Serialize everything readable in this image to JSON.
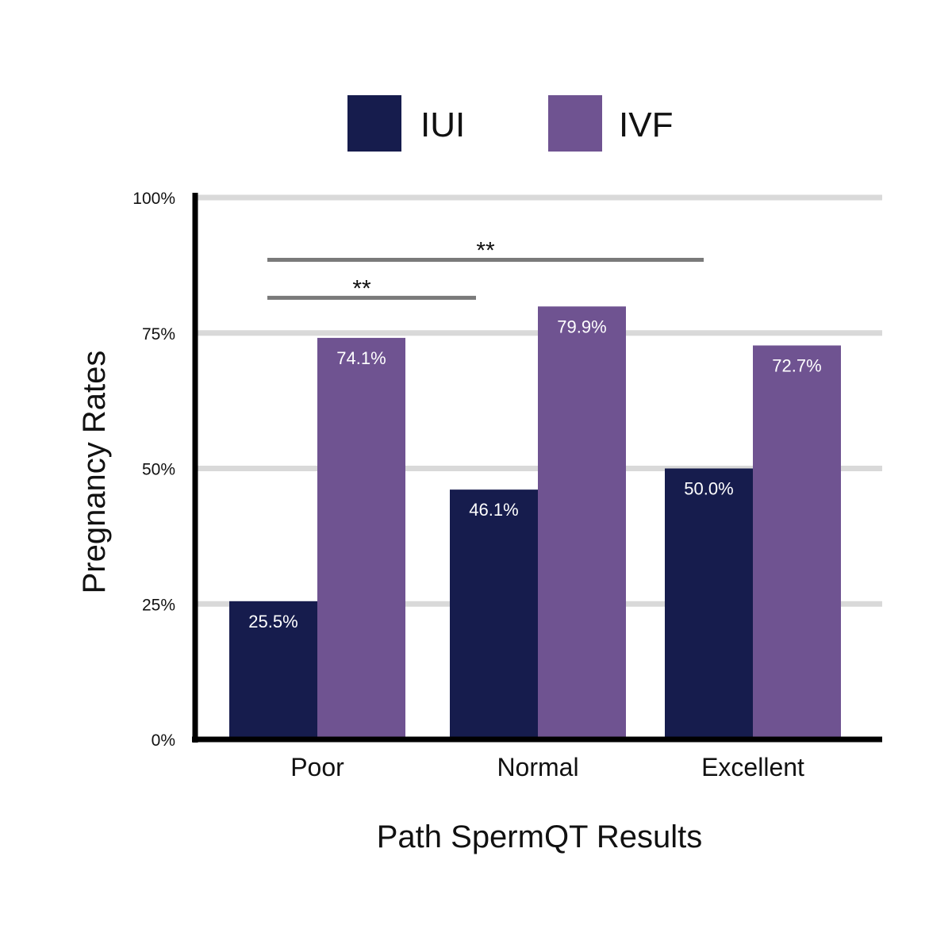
{
  "chart_data": {
    "type": "bar",
    "title": "",
    "xlabel": "Path SpermQT Results",
    "ylabel": "Pregnancy Rates",
    "categories": [
      "Poor",
      "Normal",
      "Excellent"
    ],
    "series": [
      {
        "name": "IUI",
        "color": "#161c4d",
        "values": [
          25.5,
          46.1,
          50.0
        ],
        "labels": [
          "25.5%",
          "46.1%",
          "50.0%"
        ]
      },
      {
        "name": "IVF",
        "color": "#6f5391",
        "values": [
          74.1,
          79.9,
          72.7
        ],
        "labels": [
          "74.1%",
          "79.9%",
          "72.7%"
        ]
      }
    ],
    "ylim": [
      0,
      100
    ],
    "yticks": [
      0,
      25,
      50,
      75,
      100
    ],
    "ytick_labels": [
      "0%",
      "25%",
      "50%",
      "75%",
      "100%"
    ],
    "grid": true,
    "legend_position": "top",
    "significance": [
      {
        "from": "Poor",
        "to": "Normal",
        "label": "**",
        "y": 81.5
      },
      {
        "from": "Poor",
        "to": "Excellent",
        "label": "**",
        "y": 88.5
      }
    ]
  }
}
